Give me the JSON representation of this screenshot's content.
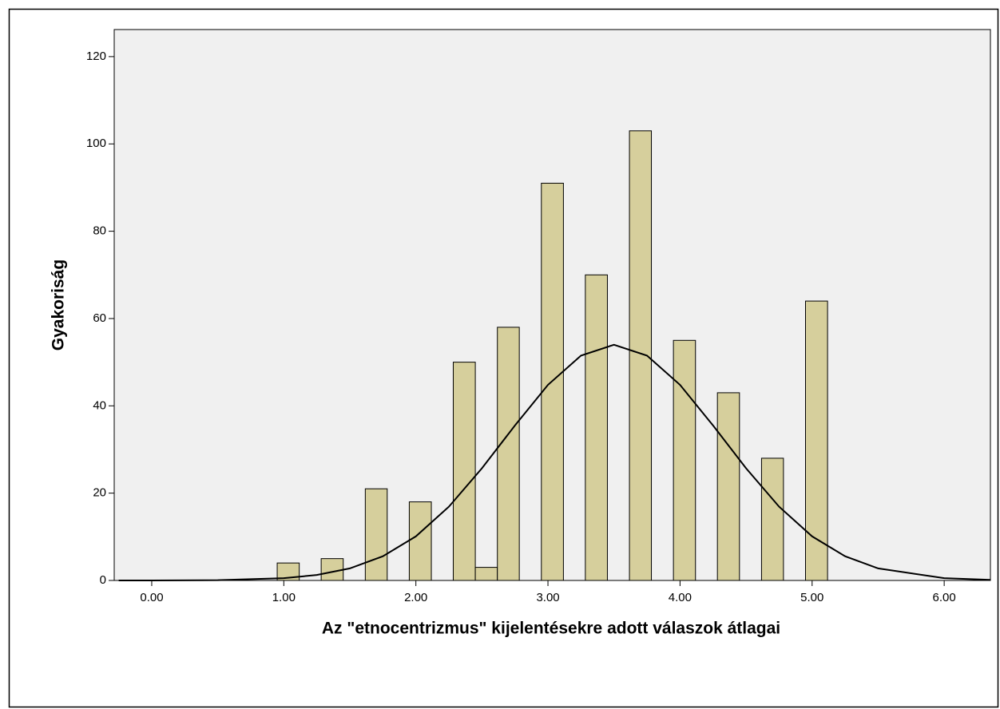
{
  "chart_data": {
    "type": "histogram",
    "xlabel": "Az \"etnocentrizmus\" kijelentésekre adott válaszok átlagai",
    "ylabel": "Gyakoriság",
    "bins": [
      0.95,
      1.117,
      1.283,
      1.45,
      1.617,
      1.783,
      1.95,
      2.117,
      2.283,
      2.45,
      2.617,
      2.783,
      2.95,
      3.117,
      3.283,
      3.45,
      3.617,
      3.783,
      3.95,
      4.117,
      4.283,
      4.45,
      4.617,
      4.783,
      4.95,
      5.117
    ],
    "counts": [
      4,
      0,
      5,
      0,
      21,
      0,
      18,
      0,
      50,
      3,
      58,
      0,
      91,
      0,
      70,
      0,
      103,
      0,
      55,
      0,
      43,
      0,
      28,
      0,
      64
    ],
    "color": "#d6cf9c",
    "normal_curve": {
      "x": [
        -0.25,
        0,
        0.5,
        1,
        1.25,
        1.5,
        1.75,
        2,
        2.25,
        2.5,
        2.75,
        3,
        3.25,
        3.5,
        3.75,
        4,
        4.25,
        4.5,
        4.75,
        5,
        5.25,
        5.5,
        6,
        6.35
      ],
      "y": [
        0,
        0,
        0.07,
        0.52,
        1.25,
        2.76,
        5.54,
        10.1,
        16.9,
        25.7,
        35.5,
        44.8,
        51.5,
        54,
        51.5,
        44.8,
        35.5,
        25.7,
        16.9,
        10.1,
        5.54,
        2.76,
        0.52,
        0.13
      ],
      "color": "#000000"
    },
    "xlim": [
      -0.284,
      6.35
    ],
    "ylim": [
      0,
      126.2
    ],
    "xticks": [
      {
        "value": 0,
        "label": "0.00"
      },
      {
        "value": 1,
        "label": "1.00"
      },
      {
        "value": 2,
        "label": "2.00"
      },
      {
        "value": 3,
        "label": "3.00"
      },
      {
        "value": 4,
        "label": "4.00"
      },
      {
        "value": 5,
        "label": "5.00"
      },
      {
        "value": 6,
        "label": "6.00"
      }
    ],
    "yticks": [
      0,
      20,
      40,
      60,
      80,
      100,
      120
    ],
    "grid": false
  }
}
